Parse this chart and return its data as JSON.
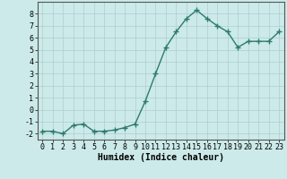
{
  "x": [
    0,
    1,
    2,
    3,
    4,
    5,
    6,
    7,
    8,
    9,
    10,
    11,
    12,
    13,
    14,
    15,
    16,
    17,
    18,
    19,
    20,
    21,
    22,
    23
  ],
  "y": [
    -1.8,
    -1.8,
    -2.0,
    -1.3,
    -1.2,
    -1.8,
    -1.8,
    -1.7,
    -1.5,
    -1.2,
    0.7,
    3.0,
    5.2,
    6.5,
    7.6,
    8.3,
    7.6,
    7.0,
    6.5,
    5.2,
    5.7,
    5.7,
    5.7,
    6.5
  ],
  "xlabel": "Humidex (Indice chaleur)",
  "xlim": [
    -0.5,
    23.5
  ],
  "ylim": [
    -2.5,
    9.0
  ],
  "yticks": [
    -2,
    -1,
    0,
    1,
    2,
    3,
    4,
    5,
    6,
    7,
    8
  ],
  "xticks": [
    0,
    1,
    2,
    3,
    4,
    5,
    6,
    7,
    8,
    9,
    10,
    11,
    12,
    13,
    14,
    15,
    16,
    17,
    18,
    19,
    20,
    21,
    22,
    23
  ],
  "line_color": "#2d7a6e",
  "marker": "+",
  "marker_size": 4.0,
  "bg_color": "#cceaea",
  "grid_color": "#b0cccc",
  "xlabel_fontsize": 7,
  "tick_fontsize": 6,
  "linewidth": 1.0
}
